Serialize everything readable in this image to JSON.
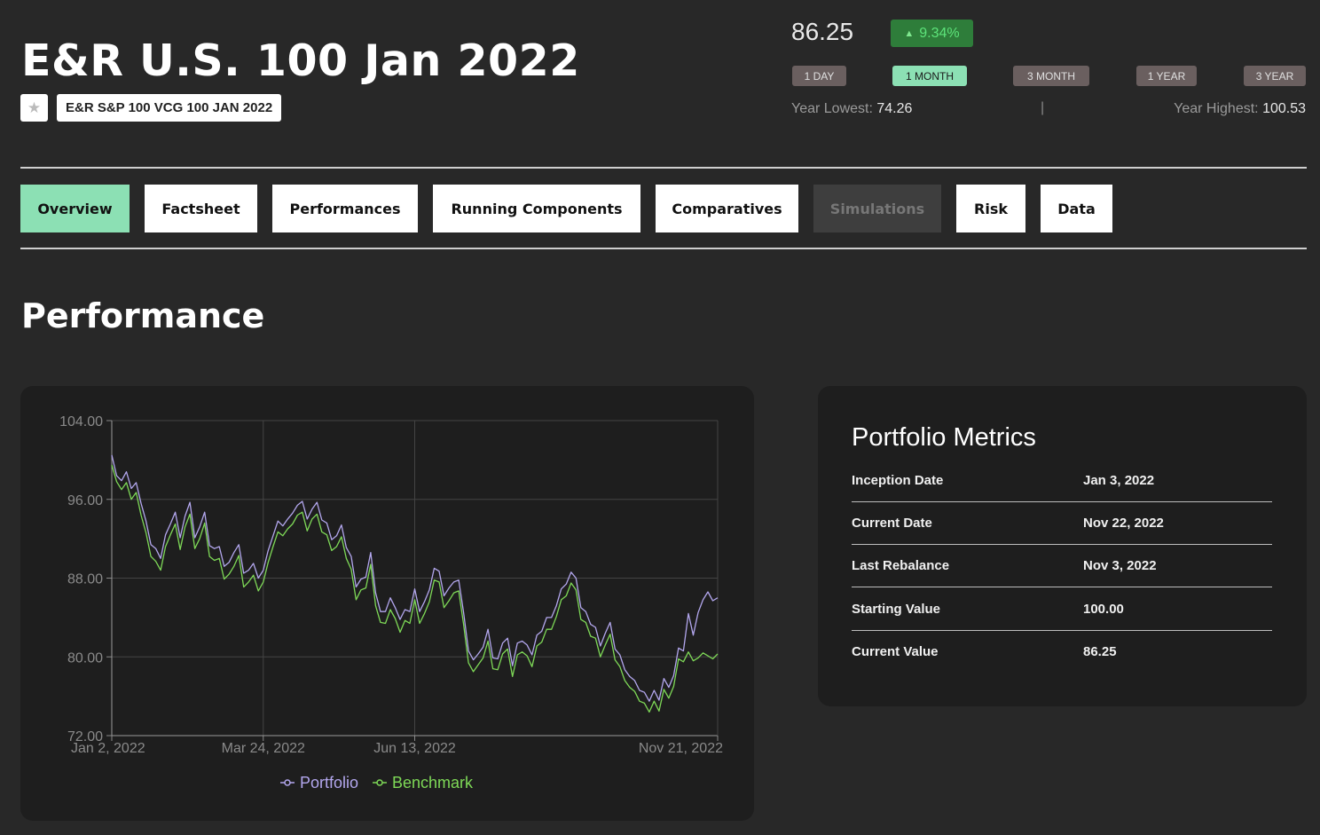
{
  "header": {
    "title": "E&R U.S. 100 Jan 2022",
    "ticker": "E&R S&P 100 VCG 100 JAN 2022",
    "star_icon": "star-icon"
  },
  "quote": {
    "price": "86.25",
    "change": "9.34%",
    "change_icon": "triangle-up-icon",
    "periods": [
      "1 DAY",
      "1 MONTH",
      "3 MONTH",
      "1 YEAR",
      "3 YEAR"
    ],
    "active_period": "1 MONTH",
    "year_lowest_label": "Year Lowest:",
    "year_lowest": "74.26",
    "separator": "|",
    "year_highest_label": "Year Highest:",
    "year_highest": "100.53"
  },
  "tabs": [
    "Overview",
    "Factsheet",
    "Performances",
    "Running Components",
    "Comparatives",
    "Simulations",
    "Risk",
    "Data"
  ],
  "active_tab": "Overview",
  "disabled_tab": "Simulations",
  "section_title": "Performance",
  "metrics": {
    "title": "Portfolio Metrics",
    "rows": [
      {
        "label": "Inception Date",
        "value": "Jan 3, 2022"
      },
      {
        "label": "Current Date",
        "value": "Nov 22, 2022"
      },
      {
        "label": "Last Rebalance",
        "value": "Nov 3, 2022"
      },
      {
        "label": "Starting Value",
        "value": "100.00"
      },
      {
        "label": "Current Value",
        "value": "86.25"
      }
    ]
  },
  "colors": {
    "accent": "#8ce0b4",
    "portfolio": "#b3a7ee",
    "benchmark": "#7ed957",
    "background": "#282828",
    "card": "#1e1e1e"
  },
  "chart_data": {
    "type": "line",
    "x_ticks": [
      "Jan 2, 2022",
      "Mar 24, 2022",
      "Jun 13, 2022",
      "Nov 21, 2022"
    ],
    "y_ticks": [
      "104.00",
      "96.00",
      "88.00",
      "80.00",
      "72.00"
    ],
    "ylim": [
      72,
      104
    ],
    "legend": "bottom",
    "series": [
      {
        "name": "Portfolio",
        "values": [
          100.5,
          98.4,
          97.9,
          98.8,
          97.1,
          97.7,
          95.6,
          93.8,
          91.4,
          91.0,
          90.0,
          92.4,
          93.5,
          94.7,
          92.1,
          94.3,
          95.7,
          92.1,
          93.2,
          94.7,
          91.3,
          91.0,
          91.2,
          89.2,
          89.6,
          90.6,
          91.4,
          88.5,
          88.8,
          89.5,
          88.0,
          88.8,
          90.8,
          92.3,
          93.8,
          93.3,
          94.0,
          94.6,
          95.4,
          95.8,
          94.0,
          95.0,
          95.7,
          93.9,
          93.6,
          91.9,
          92.3,
          93.4,
          91.1,
          90.2,
          87.1,
          87.9,
          88.1,
          90.6,
          86.5,
          84.6,
          84.6,
          86.0,
          85.0,
          83.8,
          84.8,
          84.6,
          86.9,
          84.6,
          85.6,
          86.8,
          89.0,
          88.7,
          86.2,
          87.0,
          87.6,
          87.8,
          84.5,
          80.6,
          79.7,
          80.3,
          81.0,
          82.8,
          79.9,
          79.8,
          81.4,
          81.9,
          79.1,
          81.4,
          81.6,
          81.2,
          80.2,
          82.2,
          82.6,
          84.0,
          84.0,
          85.2,
          86.9,
          87.4,
          88.6,
          88.0,
          85.0,
          84.6,
          83.3,
          83.0,
          81.1,
          82.4,
          83.5,
          80.8,
          80.2,
          78.7,
          78.0,
          77.6,
          76.6,
          76.4,
          75.5,
          76.6,
          75.6,
          77.8,
          76.9,
          78.1,
          80.9,
          80.6,
          84.4,
          82.2,
          84.5,
          85.8,
          86.6,
          85.7,
          86.0
        ],
        "raw": "portfolio"
      },
      {
        "name": "Benchmark",
        "values": [
          99.5,
          97.8,
          97.0,
          97.7,
          96.0,
          96.7,
          94.4,
          92.6,
          90.2,
          89.7,
          88.8,
          91.2,
          92.4,
          93.5,
          90.9,
          93.2,
          94.5,
          91.0,
          92.0,
          93.6,
          90.2,
          89.8,
          90.0,
          87.9,
          88.4,
          89.2,
          90.3,
          87.1,
          87.6,
          88.3,
          86.7,
          87.6,
          89.6,
          91.2,
          92.7,
          92.3,
          93.0,
          93.5,
          94.4,
          94.7,
          92.8,
          94.0,
          94.5,
          92.7,
          92.4,
          90.8,
          91.2,
          92.2,
          90.0,
          88.9,
          85.8,
          86.8,
          87.0,
          89.4,
          85.2,
          83.5,
          83.4,
          84.8,
          83.9,
          82.5,
          83.7,
          83.4,
          85.8,
          83.4,
          84.4,
          85.6,
          87.8,
          87.6,
          85.0,
          85.7,
          86.5,
          86.7,
          83.3,
          79.4,
          78.5,
          79.2,
          79.9,
          81.6,
          78.8,
          78.7,
          80.3,
          80.8,
          78.0,
          80.2,
          80.5,
          80.1,
          79.0,
          81.1,
          81.5,
          82.8,
          82.8,
          84.1,
          85.8,
          86.2,
          87.5,
          86.8,
          83.8,
          83.5,
          82.1,
          81.9,
          80.0,
          81.2,
          82.3,
          79.7,
          79.0,
          77.6,
          76.9,
          76.5,
          75.5,
          75.3,
          74.4,
          75.5,
          74.5,
          76.7,
          75.8,
          77.0,
          79.8,
          79.5,
          80.5,
          79.6,
          79.9,
          80.4,
          80.1,
          79.8,
          80.3
        ],
        "raw": "benchmark"
      }
    ]
  }
}
